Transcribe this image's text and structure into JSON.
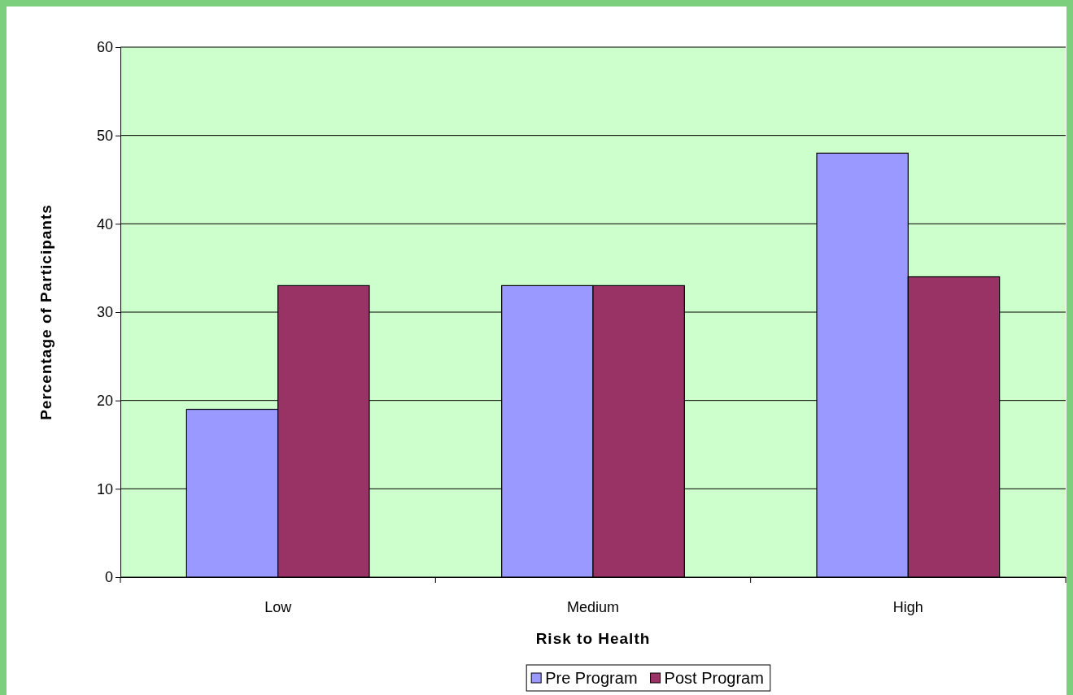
{
  "chart_data": {
    "type": "bar",
    "xlabel": "Risk to Health",
    "ylabel": "Percentage of Participants",
    "categories": [
      "Low",
      "Medium",
      "High"
    ],
    "series": [
      {
        "name": "Pre Program",
        "color": "#9999ff",
        "values": [
          19,
          33,
          48
        ]
      },
      {
        "name": "Post Program",
        "color": "#993366",
        "values": [
          33,
          33,
          34
        ]
      }
    ],
    "ylim": [
      0,
      60
    ],
    "yticks": [
      0,
      10,
      20,
      30,
      40,
      50,
      60
    ],
    "grid": "y",
    "legend": "bottom"
  }
}
